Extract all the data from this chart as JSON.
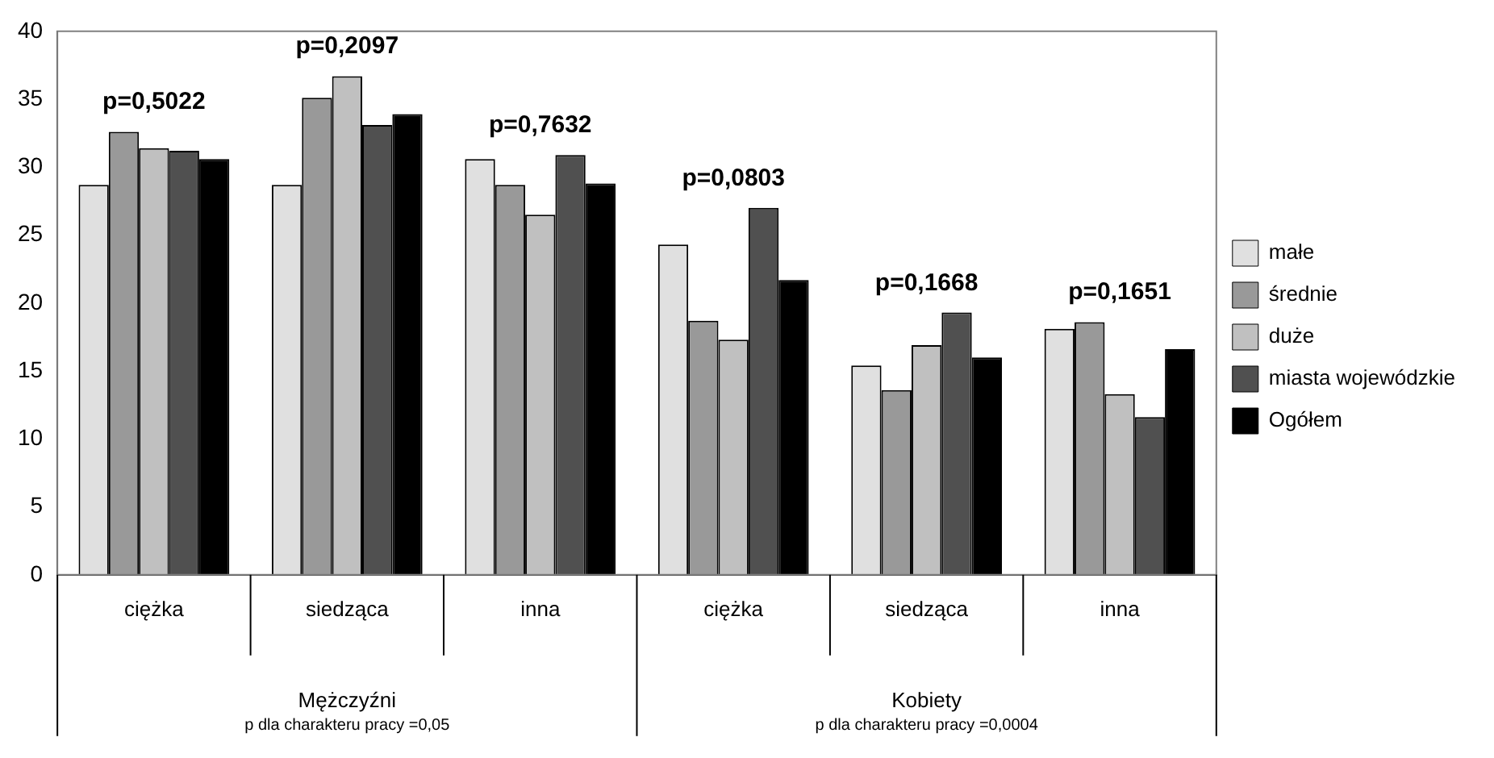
{
  "chart_data": {
    "type": "bar",
    "categories": [
      "ciężka",
      "siedząca",
      "inna",
      "ciężka",
      "siedząca",
      "inna"
    ],
    "series": [
      {
        "name": "małe",
        "color": "#e0e0e0",
        "values": [
          28.7,
          28.7,
          30.6,
          24.3,
          15.4,
          18.1
        ]
      },
      {
        "name": "średnie",
        "color": "#999999",
        "values": [
          32.6,
          35.1,
          28.7,
          18.7,
          13.6,
          18.6
        ]
      },
      {
        "name": "duże",
        "color": "#c0c0c0",
        "values": [
          31.4,
          36.7,
          26.5,
          17.3,
          16.9,
          13.3
        ]
      },
      {
        "name": "miasta wojewódzkie",
        "color": "#505050",
        "values": [
          31.2,
          33.1,
          30.9,
          27.0,
          19.3,
          11.6
        ]
      },
      {
        "name": "Ogółem",
        "color": "#000000",
        "values": [
          30.6,
          33.9,
          28.8,
          21.7,
          16.0,
          16.6
        ]
      }
    ],
    "annotations": [
      "p=0,5022",
      "p=0,2097",
      "p=0,7632",
      "p=0,0803",
      "p=0,1668",
      "p=0,1651",
      "Mężczyźni",
      "p dla charakteru pracy =0,05",
      "Kobiety",
      "p dla charakteru pracy =0,0004"
    ],
    "ylim": [
      0,
      40
    ],
    "yticks": [
      0,
      5,
      10,
      15,
      20,
      25,
      30,
      35,
      40
    ],
    "grid": false,
    "legend": "right"
  }
}
